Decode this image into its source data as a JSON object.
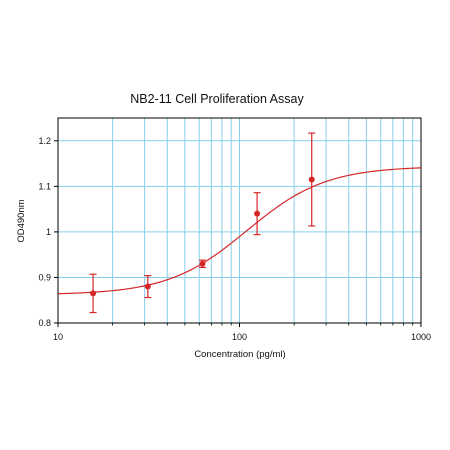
{
  "chart_data": {
    "type": "scatter",
    "title": "NB2-11 Cell Proliferation Assay",
    "xlabel": "Concentration (pg/ml)",
    "ylabel": "OD490nm",
    "xscale": "log",
    "xlim": [
      10,
      1000
    ],
    "ylim": [
      0.8,
      1.25
    ],
    "x_ticks": [
      10,
      100,
      1000
    ],
    "x_tick_labels": [
      "10",
      "100",
      "1000"
    ],
    "y_ticks": [
      0.8,
      0.9,
      1.0,
      1.1,
      1.2
    ],
    "y_tick_labels": [
      "0.8",
      "0.9",
      "1",
      "1.1",
      "1.2"
    ],
    "grid": true,
    "grid_color": "#87ceeb",
    "series": [
      {
        "color": "#d62728",
        "points": [
          {
            "x": 15.6,
            "y": 0.865,
            "err": 0.042
          },
          {
            "x": 31.25,
            "y": 0.88,
            "err": 0.024
          },
          {
            "x": 62.5,
            "y": 0.93,
            "err": 0.008
          },
          {
            "x": 125,
            "y": 1.04,
            "err": 0.046
          },
          {
            "x": 250,
            "y": 1.115,
            "err": 0.102
          }
        ],
        "fit": {
          "model": "4PL",
          "bottom": 0.862,
          "top": 1.144,
          "ec50": 110,
          "hill": 2.0
        }
      }
    ]
  }
}
